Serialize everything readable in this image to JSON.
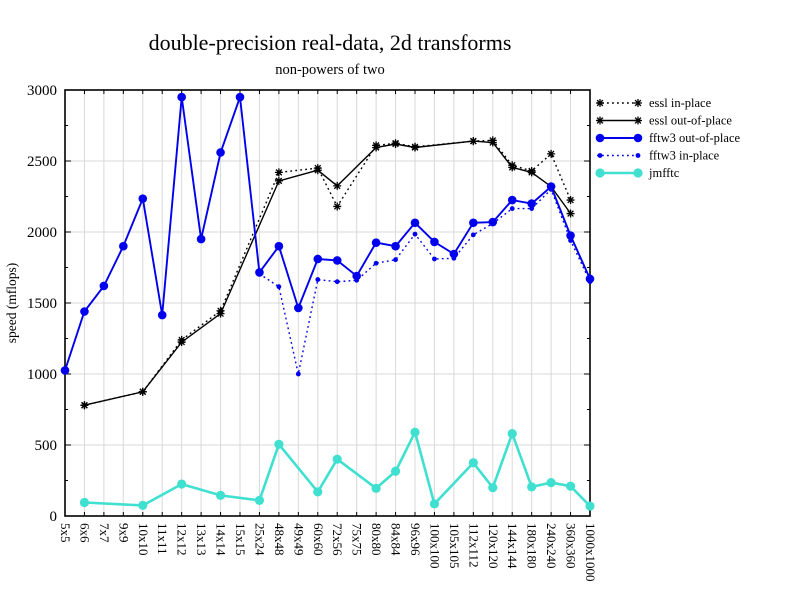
{
  "title": "double-precision real-data, 2d transforms",
  "subtitle": "non-powers of two",
  "chart_data": {
    "type": "line",
    "title": "double-precision real-data, 2d transforms",
    "subtitle": "non-powers of two",
    "xlabel": "",
    "ylabel": "speed (mflops)",
    "ylim": [
      0,
      3000
    ],
    "ytick_step": 500,
    "ytick_minor_step": 250,
    "grid": true,
    "legend_position": "right-outside-top",
    "categories": [
      "5x5",
      "6x6",
      "7x7",
      "9x9",
      "10x10",
      "11x11",
      "12x12",
      "13x13",
      "14x14",
      "15x15",
      "25x24",
      "48x48",
      "49x49",
      "60x60",
      "72x56",
      "75x75",
      "80x80",
      "84x84",
      "96x96",
      "100x100",
      "105x105",
      "112x112",
      "120x120",
      "144x144",
      "180x180",
      "240x240",
      "360x360",
      "1000x1000"
    ],
    "series": [
      {
        "name": "essl in-place",
        "color": "#000000",
        "line": "dotted",
        "line_width": 1.4,
        "marker": "asterisk",
        "marker_size": 4,
        "points": {
          "6x6": 780,
          "10x10": 875,
          "12x12": 1240,
          "14x14": 1445,
          "48x48": 2420,
          "60x60": 2450,
          "72x56": 2180,
          "80x80": 2610,
          "84x84": 2625,
          "96x96": 2600,
          "112x112": 2640,
          "120x120": 2645,
          "144x144": 2470,
          "180x180": 2430,
          "240x240": 2550,
          "360x360": 2225
        }
      },
      {
        "name": "essl out-of-place",
        "color": "#000000",
        "line": "solid",
        "line_width": 1.4,
        "marker": "asterisk",
        "marker_size": 4,
        "points": {
          "6x6": 780,
          "10x10": 875,
          "12x12": 1225,
          "14x14": 1425,
          "48x48": 2360,
          "60x60": 2435,
          "72x56": 2325,
          "80x80": 2595,
          "84x84": 2620,
          "96x96": 2595,
          "112x112": 2640,
          "120x120": 2630,
          "144x144": 2455,
          "180x180": 2420,
          "240x240": 2320,
          "360x360": 2130
        }
      },
      {
        "name": "fftw3 out-of-place",
        "color": "#0000ee",
        "line": "solid",
        "line_width": 1.9,
        "marker": "circle-large",
        "marker_size": 4.3,
        "points": {
          "5x5": 1025,
          "6x6": 1440,
          "7x7": 1620,
          "9x9": 1900,
          "10x10": 2235,
          "11x11": 1415,
          "12x12": 2950,
          "13x13": 1950,
          "14x14": 2560,
          "15x15": 2950,
          "25x24": 1715,
          "48x48": 1900,
          "49x49": 1465,
          "60x60": 1810,
          "72x56": 1800,
          "75x75": 1690,
          "80x80": 1925,
          "84x84": 1900,
          "96x96": 2065,
          "100x100": 1930,
          "105x105": 1845,
          "112x112": 2065,
          "120x120": 2070,
          "144x144": 2225,
          "180x180": 2200,
          "240x240": 2320,
          "360x360": 1975,
          "1000x1000": 1670
        }
      },
      {
        "name": "fftw3 in-place",
        "color": "#0000ee",
        "line": "dotted",
        "line_width": 1.4,
        "marker": "circle-small",
        "marker_size": 2.4,
        "points": {
          "25x24": 1705,
          "48x48": 1615,
          "49x49": 1000,
          "60x60": 1665,
          "72x56": 1650,
          "75x75": 1660,
          "80x80": 1780,
          "84x84": 1805,
          "96x96": 1985,
          "100x100": 1810,
          "105x105": 1815,
          "112x112": 1980,
          "120x120": 2060,
          "144x144": 2165,
          "180x180": 2165,
          "240x240": 2300,
          "360x360": 1940,
          "1000x1000": 1650
        }
      },
      {
        "name": "jmfftc",
        "color": "#40e0d0",
        "line": "solid",
        "line_width": 2.6,
        "marker": "circle-large",
        "marker_size": 4.6,
        "points": {
          "6x6": 95,
          "10x10": 75,
          "12x12": 225,
          "14x14": 145,
          "25x24": 110,
          "48x48": 505,
          "60x60": 170,
          "72x56": 400,
          "80x80": 195,
          "84x84": 315,
          "96x96": 590,
          "100x100": 85,
          "112x112": 375,
          "120x120": 200,
          "144x144": 580,
          "180x180": 205,
          "240x240": 235,
          "360x360": 210,
          "1000x1000": 70
        }
      }
    ]
  }
}
